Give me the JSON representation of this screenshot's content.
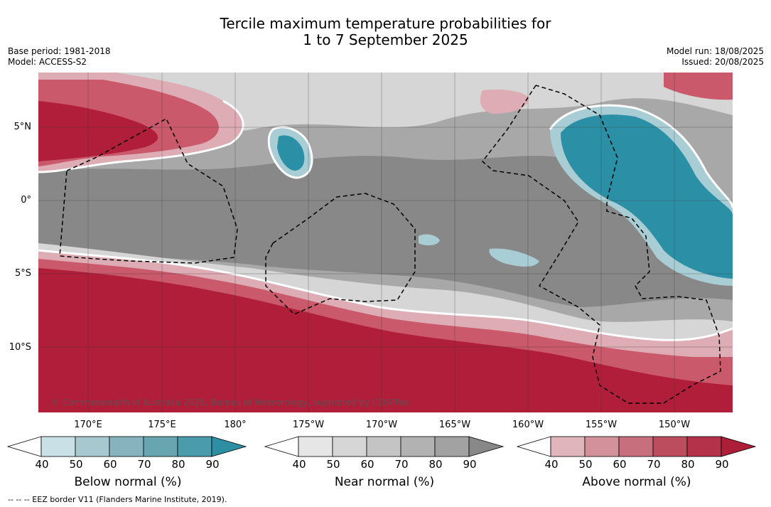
{
  "title": {
    "line1": "Tercile maximum temperature probabilities for",
    "line2": "1 to 7 September 2025"
  },
  "meta_left": {
    "base_period": "Base period: 1981-2018",
    "model": "Model: ACCESS-S2"
  },
  "meta_right": {
    "model_run": "Model run: 18/08/2025",
    "issued": "Issued: 20/08/2025"
  },
  "map": {
    "lat_labels": [
      "5°N",
      "0°",
      "5°S",
      "10°S"
    ],
    "lon_labels": [
      "170°E",
      "175°E",
      "180°",
      "175°W",
      "170°W",
      "165°W",
      "160°W",
      "155°W",
      "150°W"
    ],
    "copyright": "© Commonwealth of Australia 2025, Bureau of Meteorology, supported by COSPPac",
    "colors": {
      "above_strong": "#b01e3a",
      "above_mid": "#c9596b",
      "above_light": "#deacb4",
      "near_dark": "#888888",
      "near_mid": "#a8a8a8",
      "near_light": "#d6d6d6",
      "below_strong": "#2b8fa5",
      "below_light": "#a9cdd5"
    }
  },
  "colorbars": [
    {
      "title": "Below normal (%)",
      "ticks": [
        "40",
        "50",
        "60",
        "70",
        "80",
        "90"
      ],
      "colors": [
        "#ffffff",
        "#c9e1e6",
        "#a6c8ce",
        "#86b3bd",
        "#67a6b1",
        "#4a9cad",
        "#2e8ea3"
      ]
    },
    {
      "title": "Near normal (%)",
      "ticks": [
        "40",
        "50",
        "60",
        "70",
        "80",
        "90"
      ],
      "colors": [
        "#ffffff",
        "#e6e6e6",
        "#d6d6d6",
        "#c4c4c4",
        "#b2b2b2",
        "#a2a2a2",
        "#888888"
      ]
    },
    {
      "title": "Above normal (%)",
      "ticks": [
        "40",
        "50",
        "60",
        "70",
        "80",
        "90"
      ],
      "colors": [
        "#ffffff",
        "#e0b5bc",
        "#d3919b",
        "#c76f7c",
        "#bc4d5e",
        "#b5334a",
        "#ad1f38"
      ]
    }
  ],
  "footnote": "--  --  -- EEZ border V11 (Flanders Marine Institute, 2019)."
}
